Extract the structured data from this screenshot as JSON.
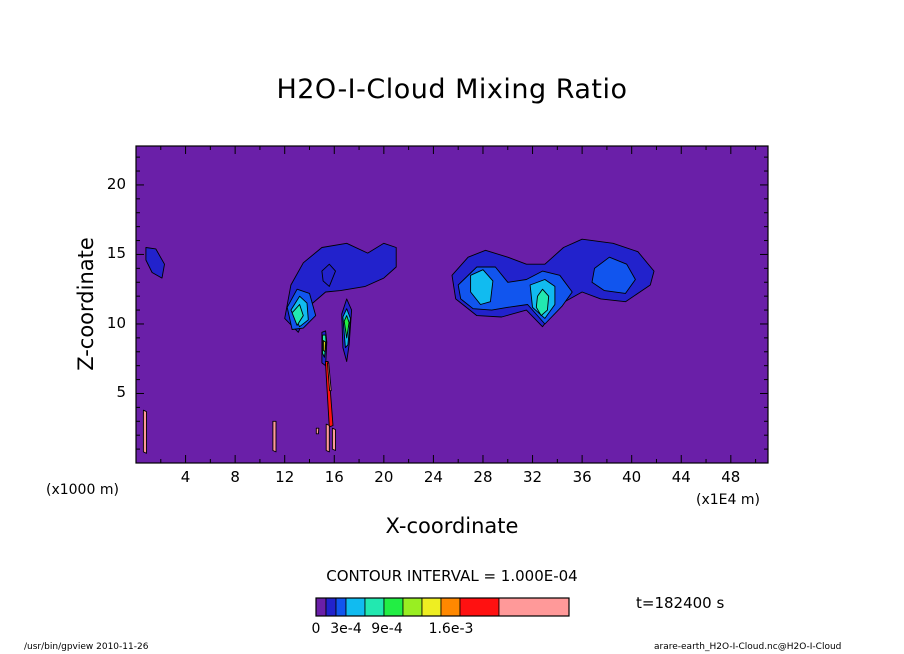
{
  "chart_data": {
    "type": "contour",
    "title": "H2O-I-Cloud Mixing Ratio",
    "xlabel": "X-coordinate",
    "ylabel": "Z-coordinate",
    "x_unit_note": "(x1000 m)",
    "y_unit_note": "(x1E4 m)",
    "x_ticks": [
      4,
      8,
      12,
      16,
      20,
      24,
      28,
      32,
      36,
      40,
      44,
      48
    ],
    "y_ticks": [
      5,
      10,
      15,
      20
    ],
    "xlim": [
      0,
      51
    ],
    "ylim": [
      0,
      22.8
    ],
    "contour_interval_text": "CONTOUR INTERVAL = 1.000E-04",
    "time_text": "t=182400 s",
    "legend": {
      "colors": [
        "#6a1fa8",
        "#2222cc",
        "#1155ee",
        "#11bbf0",
        "#22e8b0",
        "#22ee44",
        "#99ee22",
        "#eeee22",
        "#ff8800",
        "#ff1111",
        "#ff9999"
      ],
      "labels": [
        "0",
        "3e-4",
        "9e-4",
        "1.6e-3"
      ]
    },
    "regions": [
      {
        "level": 1,
        "points": [
          [
            0.8,
            15.5
          ],
          [
            1.6,
            15.4
          ],
          [
            2.3,
            14.3
          ],
          [
            2.1,
            13.3
          ],
          [
            1.3,
            13.7
          ],
          [
            0.8,
            14.6
          ]
        ]
      },
      {
        "level": 1,
        "points": [
          [
            12.0,
            10.4
          ],
          [
            12.5,
            12.8
          ],
          [
            13.5,
            14.4
          ],
          [
            15.0,
            15.5
          ],
          [
            17.0,
            15.8
          ],
          [
            18.7,
            15.1
          ],
          [
            20.0,
            15.8
          ],
          [
            21.0,
            15.5
          ],
          [
            21.0,
            14.1
          ],
          [
            20.0,
            13.3
          ],
          [
            18.5,
            12.7
          ],
          [
            16.5,
            12.4
          ],
          [
            15.3,
            12.3
          ],
          [
            14.0,
            11.3
          ],
          [
            13.1,
            9.4
          ]
        ]
      },
      {
        "level": 2,
        "points": [
          [
            12.2,
            11.2
          ],
          [
            13.0,
            12.5
          ],
          [
            14.0,
            12.2
          ],
          [
            14.5,
            10.6
          ],
          [
            13.5,
            9.7
          ],
          [
            12.6,
            9.6
          ]
        ]
      },
      {
        "level": 3,
        "points": [
          [
            12.5,
            11.0
          ],
          [
            13.2,
            12.0
          ],
          [
            13.8,
            11.5
          ],
          [
            13.9,
            10.3
          ],
          [
            13.2,
            9.8
          ]
        ]
      },
      {
        "level": 4,
        "points": [
          [
            12.6,
            10.8
          ],
          [
            13.2,
            11.4
          ],
          [
            13.5,
            10.6
          ],
          [
            13.0,
            9.9
          ]
        ]
      },
      {
        "level": 1,
        "points": [
          [
            15.0,
            13.8
          ],
          [
            15.6,
            14.3
          ],
          [
            16.1,
            13.8
          ],
          [
            15.6,
            12.7
          ],
          [
            15.1,
            13.1
          ]
        ]
      },
      {
        "level": 1,
        "points": [
          [
            16.6,
            10.7
          ],
          [
            17.0,
            11.8
          ],
          [
            17.4,
            11.0
          ],
          [
            17.2,
            8.5
          ],
          [
            17.0,
            7.3
          ],
          [
            16.7,
            8.3
          ]
        ]
      },
      {
        "level": 3,
        "points": [
          [
            16.7,
            10.5
          ],
          [
            17.0,
            11.1
          ],
          [
            17.3,
            10.4
          ],
          [
            17.1,
            8.5
          ],
          [
            16.9,
            8.3
          ]
        ]
      },
      {
        "level": 5,
        "points": [
          [
            16.8,
            10.2
          ],
          [
            17.0,
            10.6
          ],
          [
            17.2,
            10.1
          ],
          [
            17.0,
            9.0
          ]
        ]
      },
      {
        "level": 1,
        "points": [
          [
            15.0,
            9.4
          ],
          [
            15.3,
            9.5
          ],
          [
            15.4,
            8.7
          ],
          [
            15.3,
            7.0
          ],
          [
            15.0,
            7.2
          ]
        ]
      },
      {
        "level": 4,
        "points": [
          [
            15.05,
            9.2
          ],
          [
            15.3,
            9.2
          ],
          [
            15.35,
            8.6
          ],
          [
            15.2,
            7.6
          ],
          [
            15.05,
            7.9
          ]
        ]
      },
      {
        "level": 7,
        "points": [
          [
            15.12,
            8.8
          ],
          [
            15.28,
            8.7
          ],
          [
            15.25,
            8.0
          ],
          [
            15.12,
            8.1
          ]
        ]
      },
      {
        "level": 1,
        "points": [
          [
            25.5,
            13.5
          ],
          [
            26.8,
            14.8
          ],
          [
            28.2,
            15.3
          ],
          [
            30.0,
            14.8
          ],
          [
            31.5,
            14.3
          ],
          [
            33.0,
            14.3
          ],
          [
            34.5,
            15.5
          ],
          [
            36.0,
            16.1
          ],
          [
            38.5,
            15.8
          ],
          [
            40.5,
            15.2
          ],
          [
            41.8,
            13.8
          ],
          [
            41.5,
            12.8
          ],
          [
            39.5,
            11.6
          ],
          [
            37.5,
            11.8
          ],
          [
            36.0,
            12.3
          ],
          [
            34.0,
            11.3
          ],
          [
            32.8,
            9.8
          ],
          [
            31.5,
            11.0
          ],
          [
            29.5,
            10.5
          ],
          [
            27.5,
            10.6
          ],
          [
            25.8,
            11.8
          ]
        ]
      },
      {
        "level": 2,
        "points": [
          [
            26.0,
            12.8
          ],
          [
            27.5,
            14.1
          ],
          [
            29.0,
            14.1
          ],
          [
            30.0,
            13.0
          ],
          [
            31.5,
            13.2
          ],
          [
            32.8,
            13.8
          ],
          [
            34.2,
            13.5
          ],
          [
            35.2,
            12.3
          ],
          [
            34.4,
            11.3
          ],
          [
            33.0,
            10.0
          ],
          [
            31.6,
            11.4
          ],
          [
            30.0,
            11.2
          ],
          [
            28.7,
            11.0
          ],
          [
            27.2,
            11.1
          ],
          [
            26.2,
            11.8
          ]
        ]
      },
      {
        "level": 2,
        "points": [
          [
            37.0,
            14.0
          ],
          [
            38.2,
            14.8
          ],
          [
            39.6,
            14.3
          ],
          [
            40.3,
            13.2
          ],
          [
            39.5,
            12.2
          ],
          [
            37.8,
            12.4
          ],
          [
            36.8,
            13.0
          ]
        ]
      },
      {
        "level": 3,
        "points": [
          [
            27.0,
            13.5
          ],
          [
            28.0,
            13.9
          ],
          [
            28.8,
            13.1
          ],
          [
            28.6,
            11.6
          ],
          [
            27.8,
            11.4
          ],
          [
            27.0,
            12.3
          ]
        ]
      },
      {
        "level": 3,
        "points": [
          [
            31.8,
            12.8
          ],
          [
            33.0,
            13.2
          ],
          [
            33.8,
            12.7
          ],
          [
            33.8,
            11.4
          ],
          [
            33.0,
            10.4
          ],
          [
            32.0,
            11.2
          ]
        ]
      },
      {
        "level": 4,
        "points": [
          [
            32.4,
            12.0
          ],
          [
            32.8,
            12.5
          ],
          [
            33.3,
            12.0
          ],
          [
            33.2,
            11.0
          ],
          [
            32.7,
            10.6
          ],
          [
            32.3,
            11.2
          ]
        ]
      },
      {
        "level": 9,
        "points": [
          [
            15.28,
            7.3
          ],
          [
            15.5,
            7.3
          ],
          [
            15.9,
            2.7
          ],
          [
            15.6,
            2.6
          ]
        ]
      },
      {
        "level": 10,
        "points": [
          [
            15.45,
            7.2
          ],
          [
            15.55,
            7.2
          ],
          [
            15.75,
            5.2
          ],
          [
            15.62,
            5.2
          ]
        ]
      },
      {
        "level": 10,
        "points": [
          [
            0.6,
            3.8
          ],
          [
            0.85,
            3.7
          ],
          [
            0.85,
            0.7
          ],
          [
            0.6,
            0.8
          ]
        ]
      },
      {
        "level": 10,
        "points": [
          [
            11.05,
            3.0
          ],
          [
            11.3,
            3.0
          ],
          [
            11.3,
            0.8
          ],
          [
            11.05,
            0.9
          ]
        ]
      },
      {
        "level": 10,
        "points": [
          [
            15.35,
            2.8
          ],
          [
            15.6,
            2.7
          ],
          [
            15.6,
            0.8
          ],
          [
            15.35,
            0.9
          ]
        ]
      },
      {
        "level": 10,
        "points": [
          [
            15.85,
            2.5
          ],
          [
            16.1,
            2.4
          ],
          [
            16.1,
            0.9
          ],
          [
            15.85,
            1.0
          ]
        ]
      },
      {
        "level": 10,
        "points": [
          [
            14.55,
            2.5
          ],
          [
            14.75,
            2.5
          ],
          [
            14.72,
            2.1
          ],
          [
            14.55,
            2.1
          ]
        ]
      }
    ]
  },
  "footer": {
    "left": "/usr/bin/gpview  2010-11-26",
    "right": "arare-earth_H2O-I-Cloud.nc@H2O-I-Cloud"
  }
}
